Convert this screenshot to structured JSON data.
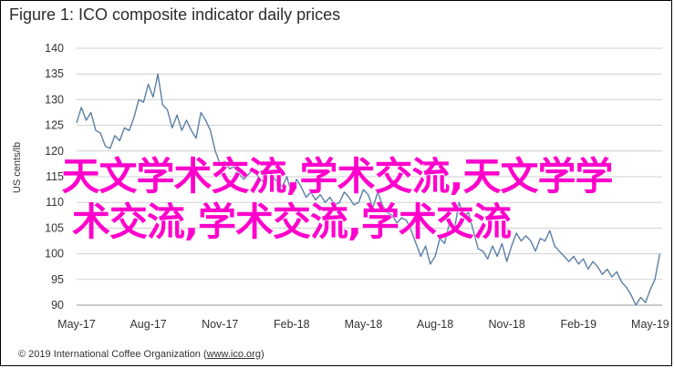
{
  "title": "Figure 1: ICO composite indicator daily prices",
  "footer_prefix": "© 2019 International Coffee Organization (",
  "footer_link": "www.ico.org",
  "footer_suffix": ")",
  "watermark_line1": "天文学术交流,学术交流,天文学学",
  "watermark_line2": "术交流,学术交流,学术交流",
  "colors": {
    "series": "#5b7fa5",
    "grid": "#cfcfcf"
  },
  "chart_data": {
    "type": "line",
    "title": "ICO composite indicator daily prices",
    "ylabel": "US cents/lb",
    "xlabel": "",
    "ylim": [
      90,
      140
    ],
    "yticks": [
      90,
      95,
      100,
      105,
      110,
      115,
      120,
      125,
      130,
      135,
      140
    ],
    "xlim": [
      0,
      24.5
    ],
    "xtick_positions": [
      0,
      3,
      6,
      9,
      12,
      15,
      18,
      21,
      24
    ],
    "xtick_labels": [
      "May-17",
      "Aug-17",
      "Nov-17",
      "Feb-18",
      "May-18",
      "Aug-18",
      "Nov-18",
      "Feb-19",
      "May-19"
    ],
    "series": [
      {
        "name": "ICO composite indicator",
        "x": [
          0,
          0.2,
          0.4,
          0.6,
          0.8,
          1.0,
          1.2,
          1.4,
          1.6,
          1.8,
          2.0,
          2.2,
          2.4,
          2.6,
          2.8,
          3.0,
          3.2,
          3.4,
          3.6,
          3.8,
          4.0,
          4.2,
          4.4,
          4.6,
          4.8,
          5.0,
          5.2,
          5.4,
          5.6,
          5.8,
          6.0,
          6.2,
          6.4,
          6.6,
          6.8,
          7.0,
          7.2,
          7.4,
          7.6,
          7.8,
          8.0,
          8.2,
          8.4,
          8.6,
          8.8,
          9.0,
          9.2,
          9.4,
          9.6,
          9.8,
          10.0,
          10.2,
          10.4,
          10.6,
          10.8,
          11.0,
          11.2,
          11.4,
          11.6,
          11.8,
          12.0,
          12.2,
          12.4,
          12.6,
          12.8,
          13.0,
          13.2,
          13.4,
          13.6,
          13.8,
          14.0,
          14.2,
          14.4,
          14.6,
          14.8,
          15.0,
          15.2,
          15.4,
          15.6,
          15.8,
          16.0,
          16.2,
          16.4,
          16.6,
          16.8,
          17.0,
          17.2,
          17.4,
          17.6,
          17.8,
          18.0,
          18.2,
          18.4,
          18.6,
          18.8,
          19.0,
          19.2,
          19.4,
          19.6,
          19.8,
          20.0,
          20.2,
          20.4,
          20.6,
          20.8,
          21.0,
          21.2,
          21.4,
          21.6,
          21.8,
          22.0,
          22.2,
          22.4,
          22.6,
          22.8,
          23.0,
          23.2,
          23.4,
          23.6,
          23.8,
          24.0,
          24.2,
          24.4
        ],
        "values": [
          125.5,
          128.5,
          126,
          127.5,
          124,
          123.5,
          121,
          120.5,
          123,
          122,
          124.5,
          124,
          126.5,
          130,
          129.5,
          133,
          130.5,
          135,
          129,
          128,
          124.5,
          127,
          124,
          126,
          124,
          122.5,
          127.5,
          126,
          124,
          120,
          117.5,
          118,
          116.5,
          117,
          115.5,
          114.5,
          115.5,
          116.5,
          115,
          114,
          116.5,
          115,
          114,
          113,
          115,
          111.5,
          114.5,
          113,
          111,
          112,
          110.5,
          111.5,
          110,
          111,
          109.5,
          110,
          112,
          111,
          109.5,
          110,
          112.5,
          111.5,
          109,
          112,
          109.5,
          108,
          107.5,
          106,
          107,
          106.5,
          104.5,
          102,
          99.5,
          101.5,
          98,
          99.5,
          103,
          102,
          106,
          104.5,
          110,
          107.5,
          108,
          104.5,
          101,
          100.5,
          99,
          101.5,
          99.5,
          102,
          98.5,
          101.5,
          104,
          102.5,
          103.5,
          102.5,
          100.5,
          103,
          102.5,
          104.5,
          101.5,
          100.5,
          99.5,
          98.5,
          99.5,
          98,
          99,
          97,
          98.5,
          97.5,
          96,
          97,
          95.5,
          96.5,
          94.5,
          93.5,
          92,
          90,
          91.5,
          90.5,
          93,
          95,
          100
        ]
      }
    ]
  }
}
